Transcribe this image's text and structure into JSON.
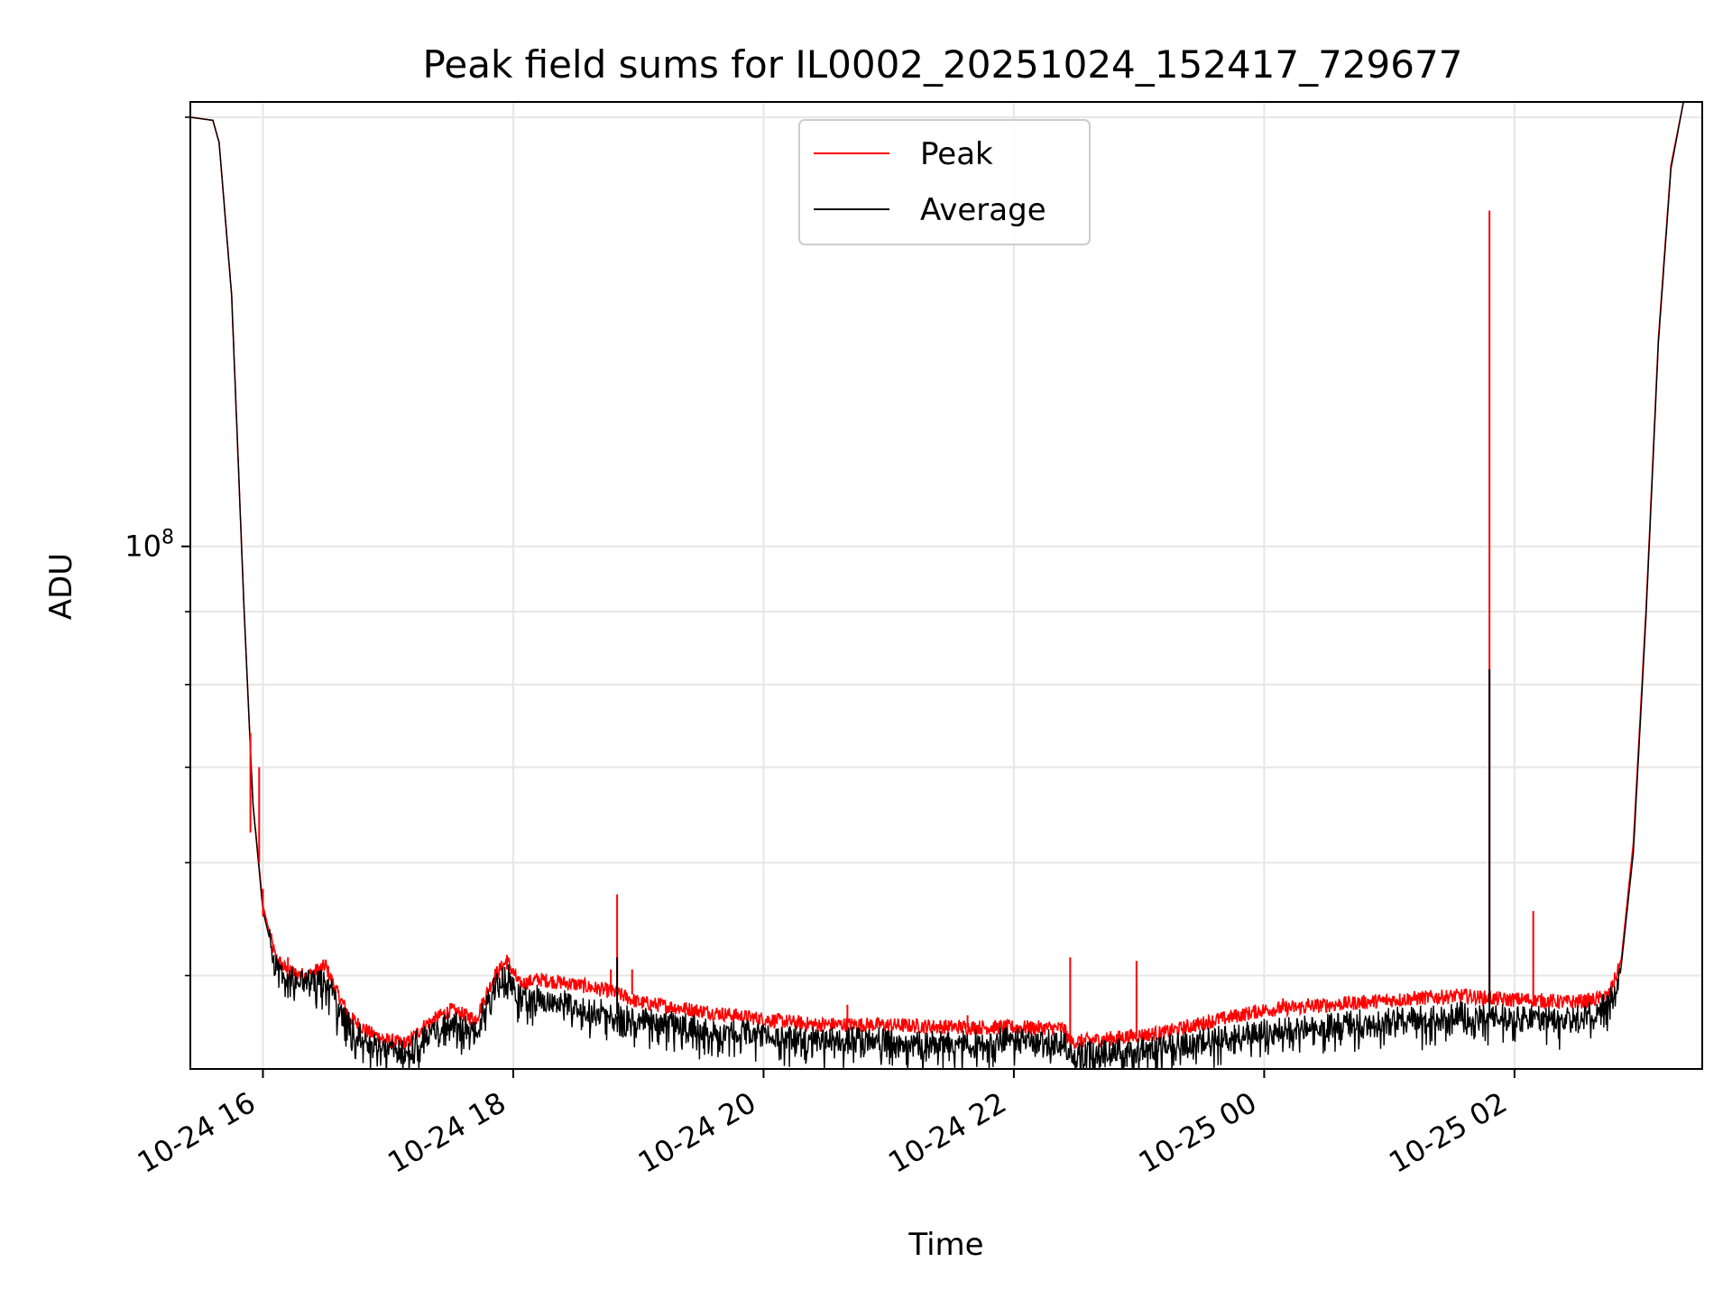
{
  "chart_data": {
    "type": "line",
    "title": "Peak field sums for IL0002_20251024_152417_729677",
    "xlabel": "Time",
    "ylabel": "ADU",
    "yscale": "log",
    "ylim": [
      43000000,
      205000000
    ],
    "xlim_hours": [
      15.42,
      27.5
    ],
    "grid": true,
    "legend_position": "top-center",
    "x_ticks": [
      {
        "hour": 16,
        "label": "10-24 16"
      },
      {
        "hour": 18,
        "label": "10-24 18"
      },
      {
        "hour": 20,
        "label": "10-24 20"
      },
      {
        "hour": 22,
        "label": "10-24 22"
      },
      {
        "hour": 24,
        "label": "10-25 00"
      },
      {
        "hour": 26,
        "label": "10-25 02"
      }
    ],
    "y_major_ticks": [
      {
        "value": 100000000,
        "base": "10",
        "exp": "8"
      }
    ],
    "y_minor_ticks": [
      50000000,
      60000000,
      70000000,
      80000000,
      90000000,
      200000000
    ],
    "series": [
      {
        "name": "Peak",
        "color": "#ff0000",
        "x_hours": [
          15.42,
          15.6,
          15.65,
          15.75,
          15.85,
          15.92,
          16.0,
          16.1,
          16.2,
          16.35,
          16.5,
          16.6,
          16.7,
          16.85,
          17.0,
          17.15,
          17.3,
          17.5,
          17.7,
          17.85,
          17.95,
          18.05,
          18.2,
          18.5,
          18.8,
          19.0,
          19.3,
          19.6,
          20.0,
          20.4,
          20.8,
          21.2,
          21.6,
          22.0,
          22.4,
          22.45,
          22.8,
          23.2,
          23.6,
          24.0,
          24.4,
          24.8,
          25.2,
          25.6,
          25.9,
          26.1,
          26.4,
          26.6,
          26.75,
          26.85,
          26.95,
          27.05,
          27.15,
          27.25,
          27.35,
          27.5
        ],
        "values": [
          200000000,
          199000000,
          192000000,
          150000000,
          90000000,
          66000000,
          56000000,
          51500000,
          50300000,
          50000000,
          50800000,
          48500000,
          46700000,
          45600000,
          45000000,
          44800000,
          46200000,
          47300000,
          46600000,
          50000000,
          51200000,
          49300000,
          49700000,
          49300000,
          48700000,
          47900000,
          47500000,
          47100000,
          46600000,
          46200000,
          46200000,
          46100000,
          46000000,
          46000000,
          45900000,
          44900000,
          45200000,
          45600000,
          46500000,
          47300000,
          47600000,
          47900000,
          48200000,
          48400000,
          48100000,
          48100000,
          47900000,
          48000000,
          48400000,
          51000000,
          62000000,
          90000000,
          140000000,
          185000000,
          205000000,
          205000000
        ]
      },
      {
        "name": "Average",
        "color": "#000000",
        "x_hours": [
          15.42,
          15.6,
          15.65,
          15.75,
          15.85,
          15.92,
          16.0,
          16.1,
          16.2,
          16.35,
          16.5,
          16.6,
          16.7,
          16.85,
          17.0,
          17.15,
          17.3,
          17.5,
          17.7,
          17.85,
          17.95,
          18.05,
          18.2,
          18.5,
          18.8,
          19.0,
          19.3,
          19.6,
          20.0,
          20.4,
          20.8,
          21.2,
          21.6,
          22.0,
          22.4,
          22.45,
          22.8,
          23.2,
          23.6,
          24.0,
          24.4,
          24.8,
          25.2,
          25.6,
          25.9,
          26.1,
          26.4,
          26.6,
          26.75,
          26.85,
          26.95,
          27.05,
          27.15,
          27.25,
          27.35,
          27.5
        ],
        "values": [
          200000000,
          199000000,
          192000000,
          150000000,
          90000000,
          66000000,
          55500000,
          51000000,
          49800000,
          49600000,
          49800000,
          47700000,
          45900000,
          44900000,
          44400000,
          44200000,
          45500000,
          46400000,
          45700000,
          49000000,
          50200000,
          48300000,
          48300000,
          47700000,
          47000000,
          46600000,
          46300000,
          45900000,
          45500000,
          45200000,
          45100000,
          45000000,
          44900000,
          45200000,
          44900000,
          44000000,
          44300000,
          44500000,
          45200000,
          45700000,
          46100000,
          46500000,
          46700000,
          47000000,
          46800000,
          46700000,
          46600000,
          47000000,
          47800000,
          50500000,
          61000000,
          89000000,
          139000000,
          184000000,
          205000000,
          205000000
        ]
      }
    ],
    "spikes": [
      {
        "series": "Peak",
        "hour": 15.9,
        "base": 63000000,
        "top": 74000000
      },
      {
        "series": "Peak",
        "hour": 15.97,
        "base": 60000000,
        "top": 70000000
      },
      {
        "series": "Peak",
        "hour": 16.0,
        "base": 55000000,
        "top": 57500000
      },
      {
        "series": "Peak",
        "hour": 16.2,
        "base": 50300000,
        "top": 51500000
      },
      {
        "series": "Peak",
        "hour": 16.5,
        "base": 50800000,
        "top": 51300000
      },
      {
        "series": "Peak",
        "hour": 17.95,
        "base": 50500000,
        "top": 51700000
      },
      {
        "series": "Peak",
        "hour": 18.78,
        "base": 48700000,
        "top": 50500000
      },
      {
        "series": "Peak",
        "hour": 18.83,
        "base": 48700000,
        "top": 57000000
      },
      {
        "series": "Peak",
        "hour": 18.95,
        "base": 48500000,
        "top": 50500000
      },
      {
        "series": "Peak",
        "hour": 20.67,
        "base": 46200000,
        "top": 47700000
      },
      {
        "series": "Peak",
        "hour": 21.63,
        "base": 46000000,
        "top": 46900000
      },
      {
        "series": "Peak",
        "hour": 22.45,
        "base": 45000000,
        "top": 51500000
      },
      {
        "series": "Peak",
        "hour": 22.98,
        "base": 45300000,
        "top": 51200000
      },
      {
        "series": "Peak",
        "hour": 24.15,
        "base": 47300000,
        "top": 48200000
      },
      {
        "series": "Peak",
        "hour": 24.35,
        "base": 47500000,
        "top": 48200000
      },
      {
        "series": "Peak",
        "hour": 25.2,
        "base": 48000000,
        "top": 48600000
      },
      {
        "series": "Peak",
        "hour": 25.8,
        "base": 48400000,
        "top": 172000000
      },
      {
        "series": "Average",
        "hour": 25.8,
        "base": 47000000,
        "top": 82000000
      },
      {
        "series": "Peak",
        "hour": 26.15,
        "base": 48000000,
        "top": 55500000
      },
      {
        "series": "Average",
        "hour": 18.83,
        "base": 47000000,
        "top": 51500000
      }
    ]
  }
}
